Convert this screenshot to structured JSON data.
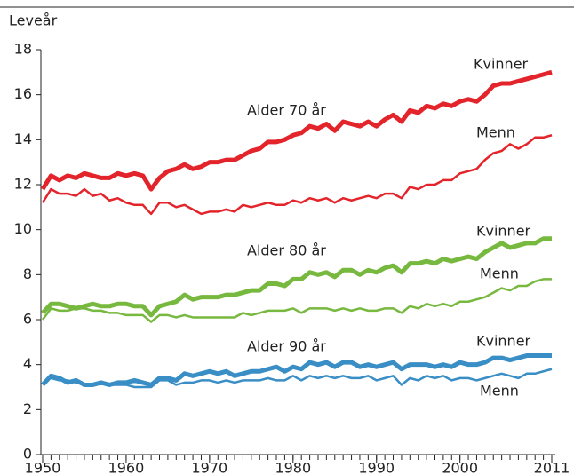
{
  "chart_data": {
    "type": "line",
    "ylabel": "Leveår",
    "annotations": [
      "Alder 70 år",
      "Alder 80 år",
      "Alder 90 år"
    ],
    "x": [
      1950,
      1951,
      1952,
      1953,
      1954,
      1955,
      1956,
      1957,
      1958,
      1959,
      1960,
      1961,
      1962,
      1963,
      1964,
      1965,
      1966,
      1967,
      1968,
      1969,
      1970,
      1971,
      1972,
      1973,
      1974,
      1975,
      1976,
      1977,
      1978,
      1979,
      1980,
      1981,
      1982,
      1983,
      1984,
      1985,
      1986,
      1987,
      1988,
      1989,
      1990,
      1991,
      1992,
      1993,
      1994,
      1995,
      1996,
      1997,
      1998,
      1999,
      2000,
      2001,
      2002,
      2003,
      2004,
      2005,
      2006,
      2007,
      2008,
      2009,
      2010,
      2011
    ],
    "xlim": [
      1950,
      2011
    ],
    "xticks": [
      1950,
      1960,
      1970,
      1980,
      1990,
      2000,
      2011
    ],
    "ylim": [
      0,
      18
    ],
    "yticks": [
      0,
      2,
      4,
      6,
      8,
      10,
      12,
      14,
      16,
      18
    ],
    "series": [
      {
        "name": "Kvinner",
        "color": "#e3242b",
        "values": [
          11.8,
          12.4,
          12.2,
          12.4,
          12.3,
          12.5,
          12.4,
          12.3,
          12.3,
          12.5,
          12.4,
          12.5,
          12.4,
          11.8,
          12.3,
          12.6,
          12.7,
          12.9,
          12.7,
          12.8,
          13.0,
          13.0,
          13.1,
          13.1,
          13.3,
          13.5,
          13.6,
          13.9,
          13.9,
          14.0,
          14.2,
          14.3,
          14.6,
          14.5,
          14.7,
          14.4,
          14.8,
          14.7,
          14.6,
          14.8,
          14.6,
          14.9,
          15.1,
          14.8,
          15.3,
          15.2,
          15.5,
          15.4,
          15.6,
          15.5,
          15.7,
          15.8,
          15.7,
          16.0,
          16.4,
          16.5,
          16.5,
          16.6,
          16.7,
          16.8,
          16.9,
          17.0
        ]
      },
      {
        "name": "Menn",
        "color": "#e3242b",
        "values": [
          11.2,
          11.8,
          11.6,
          11.6,
          11.5,
          11.8,
          11.5,
          11.6,
          11.3,
          11.4,
          11.2,
          11.1,
          11.1,
          10.7,
          11.2,
          11.2,
          11.0,
          11.1,
          10.9,
          10.7,
          10.8,
          10.8,
          10.9,
          10.8,
          11.1,
          11.0,
          11.1,
          11.2,
          11.1,
          11.1,
          11.3,
          11.2,
          11.4,
          11.3,
          11.4,
          11.2,
          11.4,
          11.3,
          11.4,
          11.5,
          11.4,
          11.6,
          11.6,
          11.4,
          11.9,
          11.8,
          12.0,
          12.0,
          12.2,
          12.2,
          12.5,
          12.6,
          12.7,
          13.1,
          13.4,
          13.5,
          13.8,
          13.6,
          13.8,
          14.1,
          14.1,
          14.2
        ]
      },
      {
        "name": "Kvinner",
        "color": "#77b83f",
        "values": [
          6.3,
          6.7,
          6.7,
          6.6,
          6.5,
          6.6,
          6.7,
          6.6,
          6.6,
          6.7,
          6.7,
          6.6,
          6.6,
          6.2,
          6.6,
          6.7,
          6.8,
          7.1,
          6.9,
          7.0,
          7.0,
          7.0,
          7.1,
          7.1,
          7.2,
          7.3,
          7.3,
          7.6,
          7.6,
          7.5,
          7.8,
          7.8,
          8.1,
          8.0,
          8.1,
          7.9,
          8.2,
          8.2,
          8.0,
          8.2,
          8.1,
          8.3,
          8.4,
          8.1,
          8.5,
          8.5,
          8.6,
          8.5,
          8.7,
          8.6,
          8.7,
          8.8,
          8.7,
          9.0,
          9.2,
          9.4,
          9.2,
          9.3,
          9.4,
          9.4,
          9.6,
          9.6
        ]
      },
      {
        "name": "Menn",
        "color": "#77b83f",
        "values": [
          6.0,
          6.5,
          6.4,
          6.4,
          6.5,
          6.5,
          6.4,
          6.4,
          6.3,
          6.3,
          6.2,
          6.2,
          6.2,
          5.9,
          6.2,
          6.2,
          6.1,
          6.2,
          6.1,
          6.1,
          6.1,
          6.1,
          6.1,
          6.1,
          6.3,
          6.2,
          6.3,
          6.4,
          6.4,
          6.4,
          6.5,
          6.3,
          6.5,
          6.5,
          6.5,
          6.4,
          6.5,
          6.4,
          6.5,
          6.4,
          6.4,
          6.5,
          6.5,
          6.3,
          6.6,
          6.5,
          6.7,
          6.6,
          6.7,
          6.6,
          6.8,
          6.8,
          6.9,
          7.0,
          7.2,
          7.4,
          7.3,
          7.5,
          7.5,
          7.7,
          7.8,
          7.8
        ]
      },
      {
        "name": "Kvinner",
        "color": "#3a8ec6",
        "values": [
          3.1,
          3.5,
          3.4,
          3.2,
          3.3,
          3.1,
          3.1,
          3.2,
          3.1,
          3.2,
          3.2,
          3.3,
          3.2,
          3.1,
          3.4,
          3.4,
          3.3,
          3.6,
          3.5,
          3.6,
          3.7,
          3.6,
          3.7,
          3.5,
          3.6,
          3.7,
          3.7,
          3.8,
          3.9,
          3.7,
          3.9,
          3.8,
          4.1,
          4.0,
          4.1,
          3.9,
          4.1,
          4.1,
          3.9,
          4.0,
          3.9,
          4.0,
          4.1,
          3.8,
          4.0,
          4.0,
          4.0,
          3.9,
          4.0,
          3.9,
          4.1,
          4.0,
          4.0,
          4.1,
          4.3,
          4.3,
          4.2,
          4.3,
          4.4,
          4.4,
          4.4,
          4.4
        ]
      },
      {
        "name": "Menn",
        "color": "#3a8ec6",
        "values": [
          3.2,
          3.4,
          3.3,
          3.3,
          3.2,
          3.1,
          3.1,
          3.2,
          3.1,
          3.1,
          3.1,
          3.0,
          3.0,
          3.0,
          3.3,
          3.3,
          3.1,
          3.2,
          3.2,
          3.3,
          3.3,
          3.2,
          3.3,
          3.2,
          3.3,
          3.3,
          3.3,
          3.4,
          3.3,
          3.3,
          3.5,
          3.3,
          3.5,
          3.4,
          3.5,
          3.4,
          3.5,
          3.4,
          3.4,
          3.5,
          3.3,
          3.4,
          3.5,
          3.1,
          3.4,
          3.3,
          3.5,
          3.4,
          3.5,
          3.3,
          3.4,
          3.4,
          3.3,
          3.4,
          3.5,
          3.6,
          3.5,
          3.4,
          3.6,
          3.6,
          3.7,
          3.8
        ]
      }
    ]
  }
}
